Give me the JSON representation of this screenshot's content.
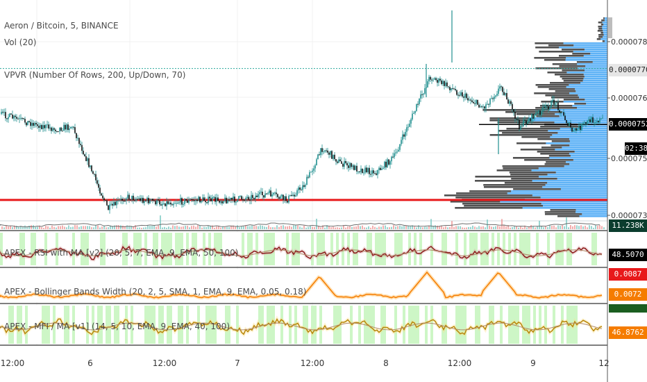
{
  "legend": {
    "title": "Aeron / Bitcoin, 5, BINANCE",
    "vol": "Vol (20)",
    "vpvr": "VPVR (Number Of Rows, 200, Up/Down, 70)"
  },
  "panes": {
    "rsi": "APEX - RSI with MA [v2] (20, 5, 7, EMA, 9, EMA, 50, 100)",
    "bbw": "APEX - Bollinger Bands Width (20, 2, 5, SMA, 1, EMA, 9, EMA, 0.05, 0.18)",
    "mfi": "APEX - MFI / MA [v1] (14, 5, 10, EMA, 9, EMA, 40, 100)"
  },
  "price_axis": {
    "ticks": [
      "0.00007800",
      "0.00007600",
      "0.000075",
      "0.000073"
    ]
  },
  "tags": {
    "level_7707": {
      "text": "0.00007707",
      "bg": "#e6e6e6",
      "fg": "#222222"
    },
    "last_price": {
      "text": "0.00007525",
      "bg": "#000000",
      "fg": "#ffffff"
    },
    "countdown": {
      "text": "02:38",
      "bg": "#000000",
      "fg": "#ffffff"
    },
    "volume": {
      "text": "11.238K",
      "bg": "#0b3d2e",
      "fg": "#ffffff"
    },
    "rsi": {
      "text": "48.5070",
      "bg": "#000000",
      "fg": "#ffffff"
    },
    "bbw_red": {
      "text": "0.0087",
      "bg": "#e8191b",
      "fg": "#ffffff"
    },
    "bbw": {
      "text": "0.0072",
      "bg": "#f57c00",
      "fg": "#ffffff"
    },
    "mfi_green": {
      "text": "",
      "bg": "#1b5e20",
      "fg": "#ffffff"
    },
    "mfi": {
      "text": "46.8762",
      "bg": "#f57c00",
      "fg": "#ffffff"
    }
  },
  "time_axis": {
    "labels": [
      "12:00",
      "6",
      "12:00",
      "7",
      "12:00",
      "8",
      "12:00",
      "9",
      "12"
    ]
  },
  "colors": {
    "candle": "#1f8f8f",
    "support_line": "#e8191b",
    "resistance_dotted": "#26a69a",
    "vp_up": "#42a5f5",
    "vp_down": "#333333",
    "rsi_line": "#8b1a1a",
    "bbw_line": "#f57c00",
    "mfi_line": "#b8860b",
    "highlight": "#c8f5c0"
  },
  "chart_data": {
    "type": "line",
    "symbol": "Aeron / Bitcoin, 5, BINANCE",
    "price_waypoints": {
      "x": [
        "5 09:00",
        "5 12:00",
        "5 18:00",
        "5 21:00",
        "6 03:00",
        "6 06:00",
        "6 12:00",
        "6 18:00",
        "7 00:00",
        "7 06:00",
        "7 09:00",
        "7 12:00",
        "7 15:00",
        "7 18:00",
        "7 21:00",
        "8 00:00",
        "8 03:00",
        "8 09:00",
        "8 12:00",
        "8 18:00",
        "8 21:00",
        "9 00:00",
        "9 06:00",
        "9 09:00",
        "9 12:00"
      ],
      "y": [
        7.56e-05,
        7.54e-05,
        7.51e-05,
        7.52e-05,
        7.25e-05,
        7.29e-05,
        7.27e-05,
        7.28e-05,
        7.28e-05,
        7.3e-05,
        7.28e-05,
        7.33e-05,
        7.45e-05,
        7.4e-05,
        7.38e-05,
        7.37e-05,
        7.42e-05,
        7.68e-05,
        7.65e-05,
        7.58e-05,
        7.65e-05,
        7.52e-05,
        7.6e-05,
        7.5e-05,
        7.54e-05
      ]
    },
    "last_price": 7.525e-05,
    "marked_level": 7.707e-05,
    "red_support_level": 7.28e-05,
    "ylim": [
      7.23e-05,
      7.88e-05
    ]
  }
}
